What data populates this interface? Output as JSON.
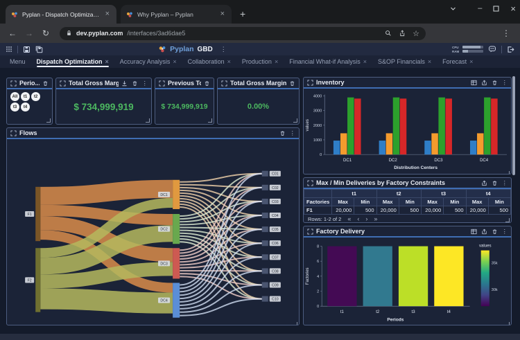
{
  "browser": {
    "tabs": [
      {
        "title": "Pyplan - Dispatch Optimization"
      },
      {
        "title": "Why Pyplan – Pyplan"
      }
    ],
    "address": {
      "domain": "dev.pyplan.com",
      "path": "/interfaces/3ad6dae5"
    }
  },
  "icons": {
    "back": "←",
    "forward": "→",
    "reload": "↻",
    "star": "☆",
    "kebab": "⋮",
    "minimize": "–",
    "close": "×",
    "new_tab": "+",
    "pagination_first": "«",
    "pagination_prev": "‹",
    "pagination_next": "›",
    "pagination_last": "»"
  },
  "app_bar": {
    "brand": "Pyplan",
    "badge": "GBD",
    "cpu": "CPU",
    "ram": "RAM"
  },
  "menu": {
    "items": [
      {
        "label": "Menu"
      },
      {
        "label": "Dispatch Optimization",
        "active": true
      },
      {
        "label": "Accuracy Analysis"
      },
      {
        "label": "Collaboration"
      },
      {
        "label": "Production"
      },
      {
        "label": "Financial What-if Analysis"
      },
      {
        "label": "S&OP Financials"
      },
      {
        "label": "Forecast"
      }
    ]
  },
  "widgets": {
    "periods": {
      "title": "Perio...",
      "chips": [
        "All",
        "t1",
        "t2",
        "t3",
        "t4"
      ]
    },
    "total_gross_margin": {
      "title": "Total Gross Margin",
      "value": "$ 734,999,919"
    },
    "previous_total_gross_margin": {
      "title": "Previous Total Gross Ma...",
      "value": "$ 734,999,919"
    },
    "total_gross_margin_difference": {
      "title": "Total Gross Margin Diffe...",
      "value": "0.00%"
    },
    "flows": {
      "title": "Flows"
    },
    "inventory": {
      "title": "Inventory"
    },
    "max_min": {
      "title": "Max / Min Deliveries by Factory Constraints",
      "rows_label": "Rows: 1-2 of 2",
      "table": {
        "factories_header": "Factories",
        "period_headers": [
          "t1",
          "t2",
          "t3",
          "t4"
        ],
        "max_label": "Max",
        "min_label": "Min",
        "rows": [
          {
            "factory": "F1",
            "values": [
              "20,000",
              "500",
              "20,000",
              "500",
              "20,000",
              "500",
              "20,000",
              "500"
            ]
          }
        ]
      }
    },
    "factory_delivery": {
      "title": "Factory Delivery"
    }
  },
  "theme": {
    "accent_blue": "#3f6db3",
    "kpi_green": "#4cb860",
    "widget_border": "#4d5d80"
  },
  "chart_data": [
    {
      "id": "inventory",
      "type": "bar",
      "title": "Inventory",
      "categories": [
        "DC1",
        "DC2",
        "DC3",
        "DC4"
      ],
      "series": [
        {
          "name": "series-1",
          "color": "#2f7ec7",
          "values": [
            950,
            950,
            950,
            950
          ]
        },
        {
          "name": "series-2",
          "color": "#f59b2d",
          "values": [
            1450,
            1450,
            1450,
            1450
          ]
        },
        {
          "name": "series-3",
          "color": "#2ca02c",
          "values": [
            3900,
            3900,
            3900,
            3900
          ]
        },
        {
          "name": "series-4",
          "color": "#d62728",
          "values": [
            3820,
            3820,
            3820,
            3820
          ]
        }
      ],
      "xlabel": "Distribution Centers",
      "ylabel": "values",
      "ylim": [
        0,
        4000
      ],
      "yticks": [
        0,
        1000,
        2000,
        3000,
        4000
      ],
      "grid": false
    },
    {
      "id": "flows",
      "type": "sankey",
      "title": "Flows",
      "left_nodes": [
        {
          "id": "F1",
          "color": "#7a5526",
          "flow_color": "#d98c4a"
        },
        {
          "id": "F2",
          "color": "#6f7030",
          "flow_color": "#b5b95e"
        }
      ],
      "mid_nodes": [
        {
          "id": "DC1",
          "color": "#e0993f",
          "flow_color": "#f2d3ab"
        },
        {
          "id": "DC2",
          "color": "#69a84e",
          "flow_color": "#dfecd3"
        },
        {
          "id": "DC3",
          "color": "#cd5a52",
          "flow_color": "#f3cfc9"
        },
        {
          "id": "DC4",
          "color": "#5b8ed6",
          "flow_color": "#cfdcf0"
        }
      ],
      "right_nodes": [
        "C01",
        "C02",
        "C03",
        "C04",
        "C05",
        "C06",
        "C07",
        "C08",
        "C09",
        "C10"
      ],
      "links": [
        {
          "source": "F1",
          "target": "DC1",
          "value": 26
        },
        {
          "source": "F1",
          "target": "DC2",
          "value": 16
        },
        {
          "source": "F1",
          "target": "DC3",
          "value": 20
        },
        {
          "source": "F1",
          "target": "DC4",
          "value": 14
        },
        {
          "source": "F2",
          "target": "DC1",
          "value": 14
        },
        {
          "source": "F2",
          "target": "DC2",
          "value": 24
        },
        {
          "source": "F2",
          "target": "DC3",
          "value": 20
        },
        {
          "source": "F2",
          "target": "DC4",
          "value": 30
        }
      ],
      "mid_to_right_value": 2
    },
    {
      "id": "factory_delivery",
      "type": "heatmap",
      "title": "Factory Delivery",
      "x": [
        "t1",
        "t2",
        "t3",
        "t4"
      ],
      "column_values": [
        27000,
        31500,
        36000,
        37000
      ],
      "column_colors": [
        "#440a54",
        "#31798f",
        "#bcdf27",
        "#fde725"
      ],
      "xlabel": "Periods",
      "ylabel": "Factories",
      "yticks": [
        0,
        2,
        4,
        6,
        8
      ],
      "colorbar": {
        "title": "values",
        "ticks": [
          "35k",
          "30k"
        ],
        "gradient": [
          "#fde725",
          "#7ad151",
          "#22a884",
          "#2a788e",
          "#414487",
          "#440154"
        ]
      }
    }
  ]
}
